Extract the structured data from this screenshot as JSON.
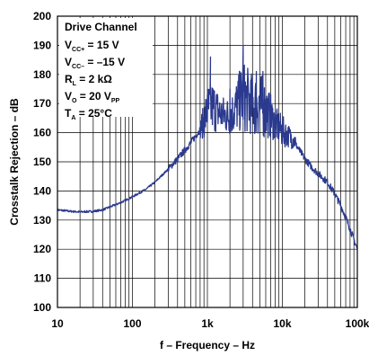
{
  "chart_data": {
    "type": "line",
    "xscale": "log",
    "xlim": [
      10,
      100000
    ],
    "ylim": [
      100,
      200
    ],
    "xlabel": "f – Frequency – Hz",
    "ylabel": "Crosstalk Rejection – dB",
    "grid": true,
    "x_ticks": [
      "10",
      "100",
      "1k",
      "10k",
      "100k"
    ],
    "y_ticks": [
      "100",
      "110",
      "120",
      "130",
      "140",
      "150",
      "160",
      "170",
      "180",
      "190",
      "200"
    ],
    "legend": {
      "placement": "top-left",
      "title": "Drive Channel",
      "lines": [
        {
          "main": "V",
          "sub": "CC+",
          "rest": " = 15 V"
        },
        {
          "main": "V",
          "sub": "CC–",
          "rest": " = –15 V"
        },
        {
          "main": "R",
          "sub": "L",
          "rest": " = 2 kΩ"
        },
        {
          "main": "V",
          "sub": "O",
          "rest": " = 20 V",
          "sub2": "PP"
        },
        {
          "main": "T",
          "sub": "A",
          "rest": " = 25°C"
        }
      ]
    },
    "series": [
      {
        "color": "#2b3a8f",
        "x": [
          10,
          15,
          20,
          30,
          40,
          50,
          70,
          100,
          150,
          200,
          300,
          400,
          500,
          600,
          700,
          800,
          900,
          1000,
          1200,
          1500,
          2000,
          2500,
          3000,
          4000,
          5000,
          6000,
          7000,
          8000,
          10000,
          12000,
          15000,
          20000,
          25000,
          30000,
          40000,
          50000,
          60000,
          70000,
          80000,
          100000
        ],
        "y": [
          133.5,
          133,
          132.8,
          133,
          133.5,
          134.5,
          136,
          138,
          140.5,
          143,
          147.5,
          151,
          154,
          156.5,
          159,
          161,
          163,
          165,
          166,
          166,
          163,
          165,
          166,
          166,
          164,
          163,
          162,
          160,
          159,
          158,
          156,
          151,
          148,
          146,
          143,
          139,
          135,
          131,
          127,
          120
        ]
      }
    ],
    "peaks": {
      "x": [
        1000,
        1100,
        2000,
        2700,
        3000,
        4500,
        5500,
        7000
      ],
      "y": [
        173,
        186,
        175,
        181,
        190,
        181,
        181,
        173
      ]
    },
    "band": {
      "x": [
        800,
        900,
        1000,
        1200,
        1500,
        2000,
        2500,
        3000,
        4000,
        5000,
        6000,
        7000,
        8000,
        10000,
        12000,
        15000
      ],
      "low": [
        158,
        158,
        159,
        160,
        160,
        159,
        160,
        160,
        159,
        158,
        158,
        158,
        157,
        155,
        155,
        154
      ],
      "high": [
        165,
        170,
        177,
        178,
        173,
        172,
        179,
        185,
        180,
        181,
        178,
        173,
        169,
        166,
        163,
        160
      ]
    }
  }
}
